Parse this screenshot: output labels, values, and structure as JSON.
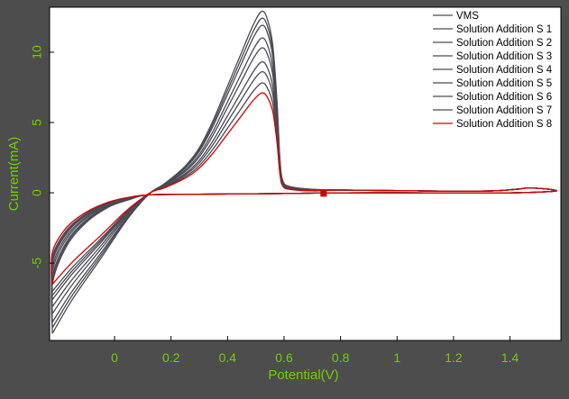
{
  "colors": {
    "background": "#4d4d4d",
    "plot_background": "#ffffff",
    "axis_text": "#6ed000",
    "series_gray": "#4a4a55",
    "series_red": "#d40000"
  },
  "chart_data": {
    "type": "line",
    "title": "",
    "xlabel": "Potential(V)",
    "ylabel": "Current(mA)",
    "xlim": [
      -0.23,
      1.58
    ],
    "ylim": [
      -10.5,
      13.2
    ],
    "xticks": [
      0,
      0.2,
      0.4,
      0.6,
      0.8,
      1,
      1.2,
      1.4
    ],
    "xtick_labels": [
      "0",
      "0.2",
      "0.4",
      "0.6",
      "0.8",
      "1",
      "1.2",
      "1.4"
    ],
    "yticks": [
      -5,
      0,
      5,
      10
    ],
    "ytick_labels": [
      "-5",
      "0",
      "5",
      "10"
    ],
    "grid": false,
    "legend_position": "top-right",
    "series": [
      {
        "name": "VMS",
        "color": "#4a4a55",
        "peak": 12.9,
        "min": -10.0
      },
      {
        "name": "Solution Addition S 1",
        "color": "#4a4a55",
        "peak": 12.4,
        "min": -9.6
      },
      {
        "name": "Solution Addition S 2",
        "color": "#4a4a55",
        "peak": 11.9,
        "min": -9.2
      },
      {
        "name": "Solution Addition S 3",
        "color": "#4a4a55",
        "peak": 11.0,
        "min": -8.6
      },
      {
        "name": "Solution Addition S 4",
        "color": "#4a4a55",
        "peak": 10.3,
        "min": -8.1
      },
      {
        "name": "Solution Addition S 5",
        "color": "#4a4a55",
        "peak": 9.3,
        "min": -7.6
      },
      {
        "name": "Solution Addition S 6",
        "color": "#4a4a55",
        "peak": 8.6,
        "min": -7.3
      },
      {
        "name": "Solution Addition S 7",
        "color": "#4a4a55",
        "peak": 7.8,
        "min": -7.0
      },
      {
        "name": "Solution Addition S 8",
        "color": "#d40000",
        "peak": 7.1,
        "min": -6.5
      }
    ],
    "markers": [
      {
        "series": "Solution Addition S 8",
        "x": 0.74,
        "y": -0.05,
        "shape": "square",
        "color": "#d40000"
      }
    ]
  }
}
